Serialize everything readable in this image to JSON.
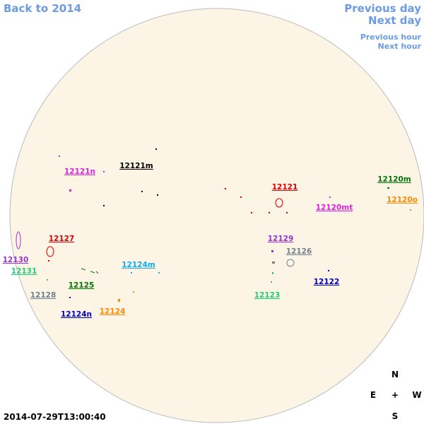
{
  "nav": {
    "back_year": "Back to 2014",
    "previous_day": "Previous day",
    "next_day": "Next day",
    "previous_hour": "Previous hour",
    "next_hour": "Next hour"
  },
  "regions": [
    {
      "label": "12121m",
      "color": "#000000"
    },
    {
      "label": "12121n",
      "color": "#dd22dd"
    },
    {
      "label": "12121",
      "color": "#dd0000"
    },
    {
      "label": "12120m",
      "color": "#007700"
    },
    {
      "label": "12120o",
      "color": "#ff8800"
    },
    {
      "label": "12120mt",
      "color": "#dd22dd"
    },
    {
      "label": "12129",
      "color": "#9933cc"
    },
    {
      "label": "12127",
      "color": "#dd0000"
    },
    {
      "label": "12126",
      "color": "#708090"
    },
    {
      "label": "12130",
      "color": "#9933cc"
    },
    {
      "label": "12124m",
      "color": "#11aaee"
    },
    {
      "label": "12131",
      "color": "#22cc77"
    },
    {
      "label": "12125",
      "color": "#007700"
    },
    {
      "label": "12122",
      "color": "#0000bb"
    },
    {
      "label": "12128",
      "color": "#708090"
    },
    {
      "label": "12123",
      "color": "#22cc77"
    },
    {
      "label": "12124",
      "color": "#ff8800"
    },
    {
      "label": "12124n",
      "color": "#0000bb"
    }
  ],
  "compass": {
    "north": "N",
    "east": "E",
    "center": "+",
    "west": "W",
    "south": "S"
  },
  "timestamp": "2014-07-29T13:00:40"
}
